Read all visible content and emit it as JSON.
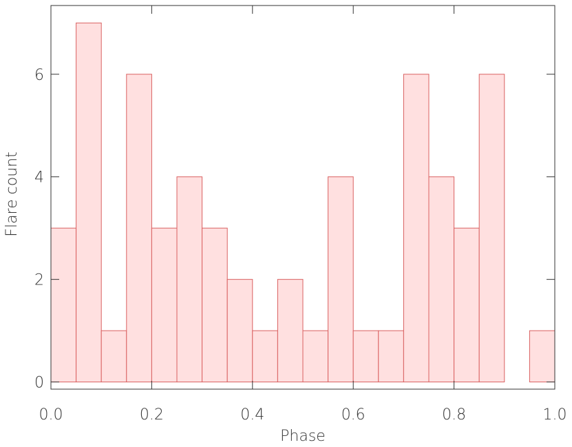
{
  "chart_data": {
    "type": "histogram",
    "bins": [
      0,
      0.05,
      0.1,
      0.15,
      0.2,
      0.25,
      0.3,
      0.35,
      0.4,
      0.45,
      0.5,
      0.55,
      0.6,
      0.65,
      0.7,
      0.75,
      0.8,
      0.85,
      0.9,
      0.95,
      1
    ],
    "counts": [
      3,
      7,
      1,
      6,
      3,
      4,
      3,
      2,
      1,
      2,
      1,
      4,
      1,
      1,
      6,
      4,
      3,
      6,
      0,
      1
    ],
    "color": "#ffe0e0",
    "edge_color": "#d96060",
    "xlabel": "Phase",
    "ylabel": "Flare count",
    "xlim": [
      0,
      1
    ],
    "ylim": [
      -0.14,
      7.34
    ],
    "xticks": [
      {
        "value": 0,
        "label": "0.0"
      },
      0.2,
      0.4,
      0.6,
      0.8,
      {
        "value": 1,
        "label": "1.0"
      }
    ],
    "yticks": [
      0,
      2,
      4,
      6
    ]
  }
}
